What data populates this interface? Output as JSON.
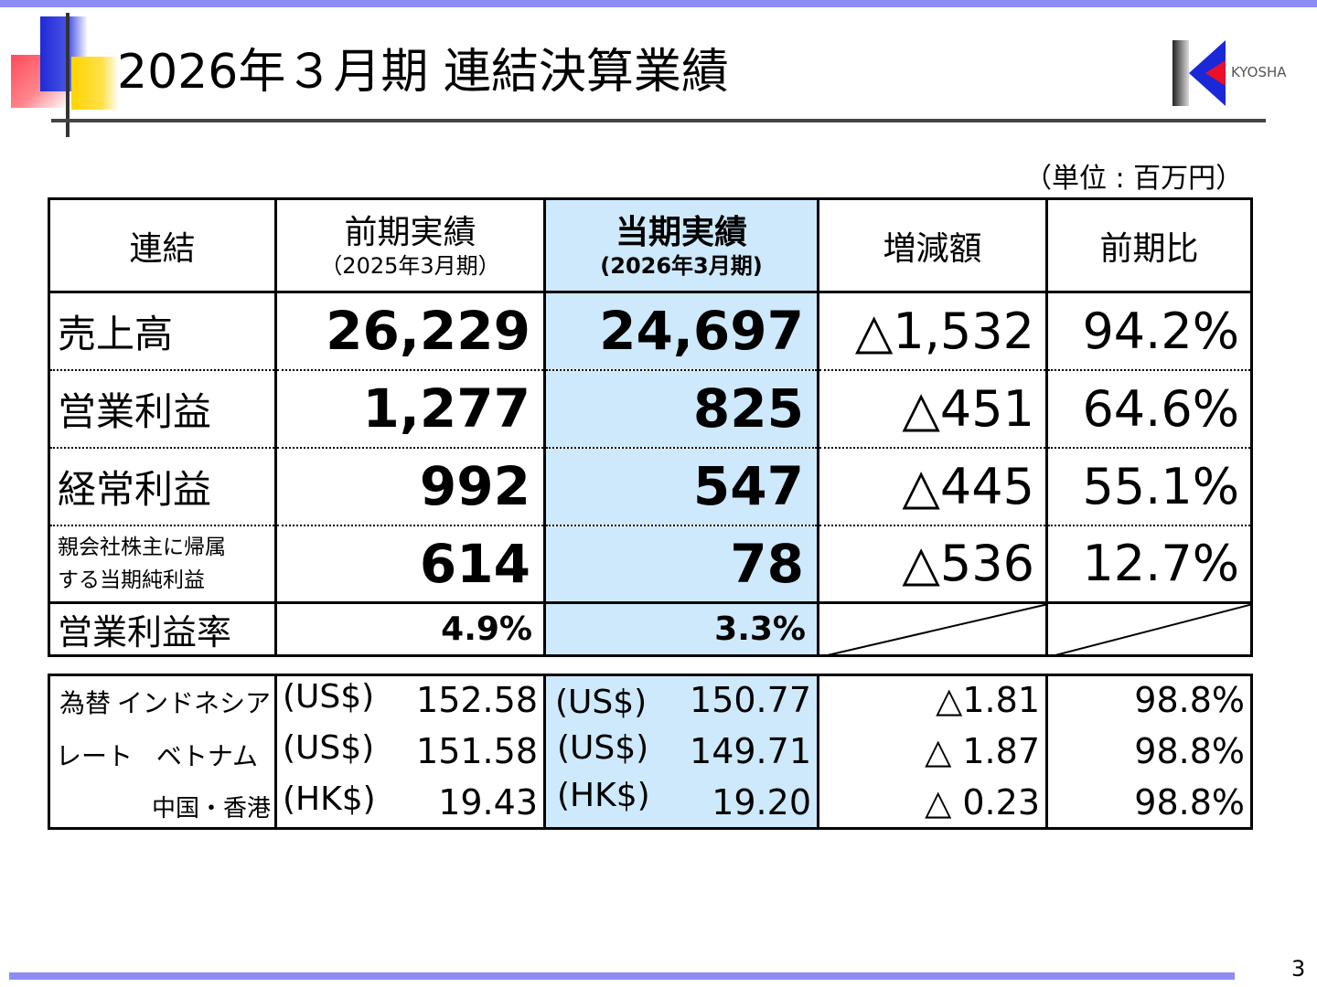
{
  "header": {
    "title": "2026年３月期 連結決算業績",
    "logo_text": "KYOSHA",
    "unit_note": "（単位 : 百万円）"
  },
  "table": {
    "corner_label": "連結",
    "columns": [
      {
        "label": "前期実績",
        "sub": "（2025年3月期）"
      },
      {
        "label": "当期実績",
        "sub": "(2026年3月期)"
      },
      {
        "label": "増減額"
      },
      {
        "label": "前期比"
      }
    ],
    "rows": [
      {
        "label": "売上高",
        "prev": "26,229",
        "curr": "24,697",
        "diff": "△1,532",
        "ratio": "94.2%"
      },
      {
        "label": "営業利益",
        "prev": "1,277",
        "curr": "825",
        "diff": "△451",
        "ratio": "64.6%"
      },
      {
        "label": "経常利益",
        "prev": "992",
        "curr": "547",
        "diff": "△445",
        "ratio": "55.1%"
      },
      {
        "label_line1": "親会社株主に帰属",
        "label_line2": "する当期純利益",
        "prev": "614",
        "curr": "78",
        "diff": "△536",
        "ratio": "12.7%"
      },
      {
        "label": "営業利益率",
        "prev": "4.9%",
        "curr": "3.3%"
      }
    ]
  },
  "fx": {
    "label_a": "為替",
    "label_b": "レート",
    "rows": [
      {
        "country": "インドネシア",
        "prev_cur": "(US$)",
        "prev": "152.58",
        "curr_cur": "(US$)",
        "curr": "150.77",
        "diff": "△1.81",
        "ratio": "98.8%"
      },
      {
        "country": "ベトナム",
        "prev_cur": "(US$)",
        "prev": "151.58",
        "curr_cur": "(US$)",
        "curr": "149.71",
        "diff": "△ 1.87",
        "ratio": "98.8%"
      },
      {
        "country": "中国・香港",
        "prev_cur": "(HK$)",
        "prev": "19.43",
        "curr_cur": "(HK$)",
        "curr": "19.20",
        "diff": "△ 0.23",
        "ratio": "98.8%"
      }
    ]
  },
  "footer": {
    "page_number": "3"
  },
  "colors": {
    "band": "#8c8cf2",
    "current_column": "#cde9fb",
    "logo_blue": "#1a28d8",
    "logo_red": "#e8102a"
  }
}
